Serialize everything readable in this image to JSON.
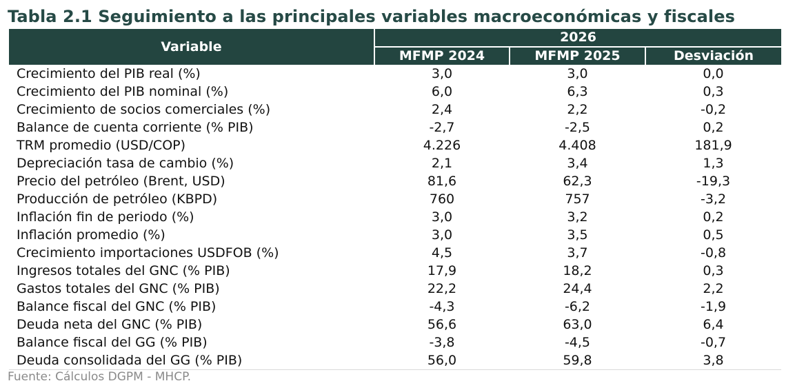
{
  "title": "Tabla 2.1 Seguimiento a las principales variables macroeconómicas y fiscales",
  "header": {
    "variable": "Variable",
    "year": "2026",
    "columns": [
      "MFMP 2024",
      "MFMP 2025",
      "Desviación"
    ]
  },
  "rows": [
    {
      "label": "Crecimiento del PIB real (%)",
      "values": [
        "3,0",
        "3,0",
        "0,0"
      ]
    },
    {
      "label": "Crecimiento del PIB nominal (%)",
      "values": [
        "6,0",
        "6,3",
        "0,3"
      ]
    },
    {
      "label": "Crecimiento de socios comerciales (%)",
      "values": [
        "2,4",
        "2,2",
        "-0,2"
      ]
    },
    {
      "label": "Balance de cuenta corriente (% PIB)",
      "values": [
        "-2,7",
        "-2,5",
        "0,2"
      ]
    },
    {
      "label": "TRM promedio (USD/COP)",
      "values": [
        "4.226",
        "4.408",
        "181,9"
      ]
    },
    {
      "label": "Depreciación tasa de cambio (%)",
      "values": [
        "2,1",
        "3,4",
        "1,3"
      ]
    },
    {
      "label": "Precio del petróleo (Brent, USD)",
      "values": [
        "81,6",
        "62,3",
        "-19,3"
      ]
    },
    {
      "label": "Producción de petróleo (KBPD)",
      "values": [
        "760",
        "757",
        "-3,2"
      ]
    },
    {
      "label": "Inflación fin de periodo (%)",
      "values": [
        "3,0",
        "3,2",
        "0,2"
      ]
    },
    {
      "label": "Inflación promedio (%)",
      "values": [
        "3,0",
        "3,5",
        "0,5"
      ]
    },
    {
      "label": "Crecimiento importaciones USDFOB (%)",
      "values": [
        "4,5",
        "3,7",
        "-0,8"
      ]
    },
    {
      "label": "Ingresos totales del GNC (% PIB)",
      "values": [
        "17,9",
        "18,2",
        "0,3"
      ]
    },
    {
      "label": "Gastos totales del GNC (% PIB)",
      "values": [
        "22,2",
        "24,4",
        "2,2"
      ]
    },
    {
      "label": "Balance fiscal del GNC (% PIB)",
      "values": [
        "-4,3",
        "-6,2",
        "-1,9"
      ]
    },
    {
      "label": "Deuda neta del GNC (% PIB)",
      "values": [
        "56,6",
        "63,0",
        "6,4"
      ]
    },
    {
      "label": "Balance fiscal del GG (% PIB)",
      "values": [
        "-3,8",
        "-4,5",
        "-0,7"
      ]
    },
    {
      "label": "Deuda consolidada del GG (% PIB)",
      "values": [
        "56,0",
        "59,8",
        "3,8"
      ]
    }
  ],
  "source": "Fuente: Cálculos DGPM - MHCP."
}
